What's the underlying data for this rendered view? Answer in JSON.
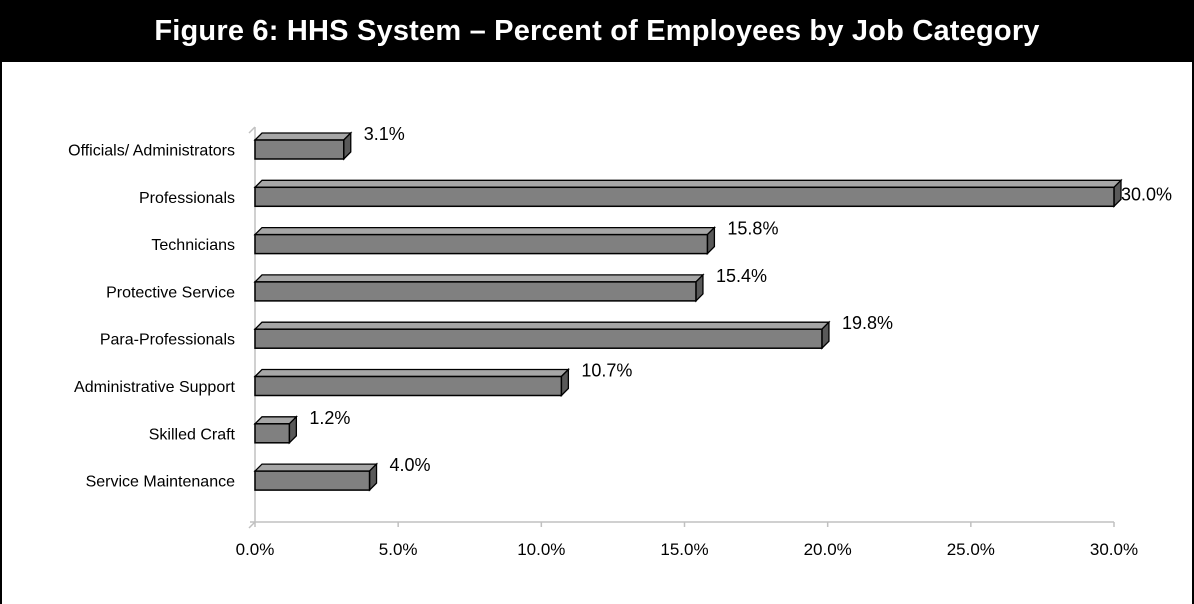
{
  "chart_data": {
    "type": "bar",
    "orientation": "horizontal",
    "title": "Figure 6: HHS System – Percent of Employees by Job Category",
    "categories": [
      "Officials/ Administrators",
      "Professionals",
      "Technicians",
      "Protective Service",
      "Para-Professionals",
      "Administrative Support",
      "Skilled Craft",
      "Service Maintenance"
    ],
    "values": [
      3.1,
      30.0,
      15.8,
      15.4,
      19.8,
      10.7,
      1.2,
      4.0
    ],
    "data_labels": [
      "3.1%",
      "30.0%",
      "15.8%",
      "15.4%",
      "19.8%",
      "10.7%",
      "1.2%",
      "4.0%"
    ],
    "xlim": [
      0,
      30
    ],
    "xticks": [
      0,
      5,
      10,
      15,
      20,
      25,
      30
    ],
    "xtick_labels": [
      "0.0%",
      "5.0%",
      "10.0%",
      "15.0%",
      "20.0%",
      "25.0%",
      "30.0%"
    ],
    "xlabel": "",
    "ylabel": "",
    "grid": false,
    "legend": "none",
    "colors": {
      "bar_front": "#808080",
      "bar_top": "#a6a6a6",
      "bar_side": "#595959",
      "outline": "#000000",
      "axis": "#c0c0c0",
      "title_background": "#000000",
      "title_text": "#ffffff"
    }
  }
}
